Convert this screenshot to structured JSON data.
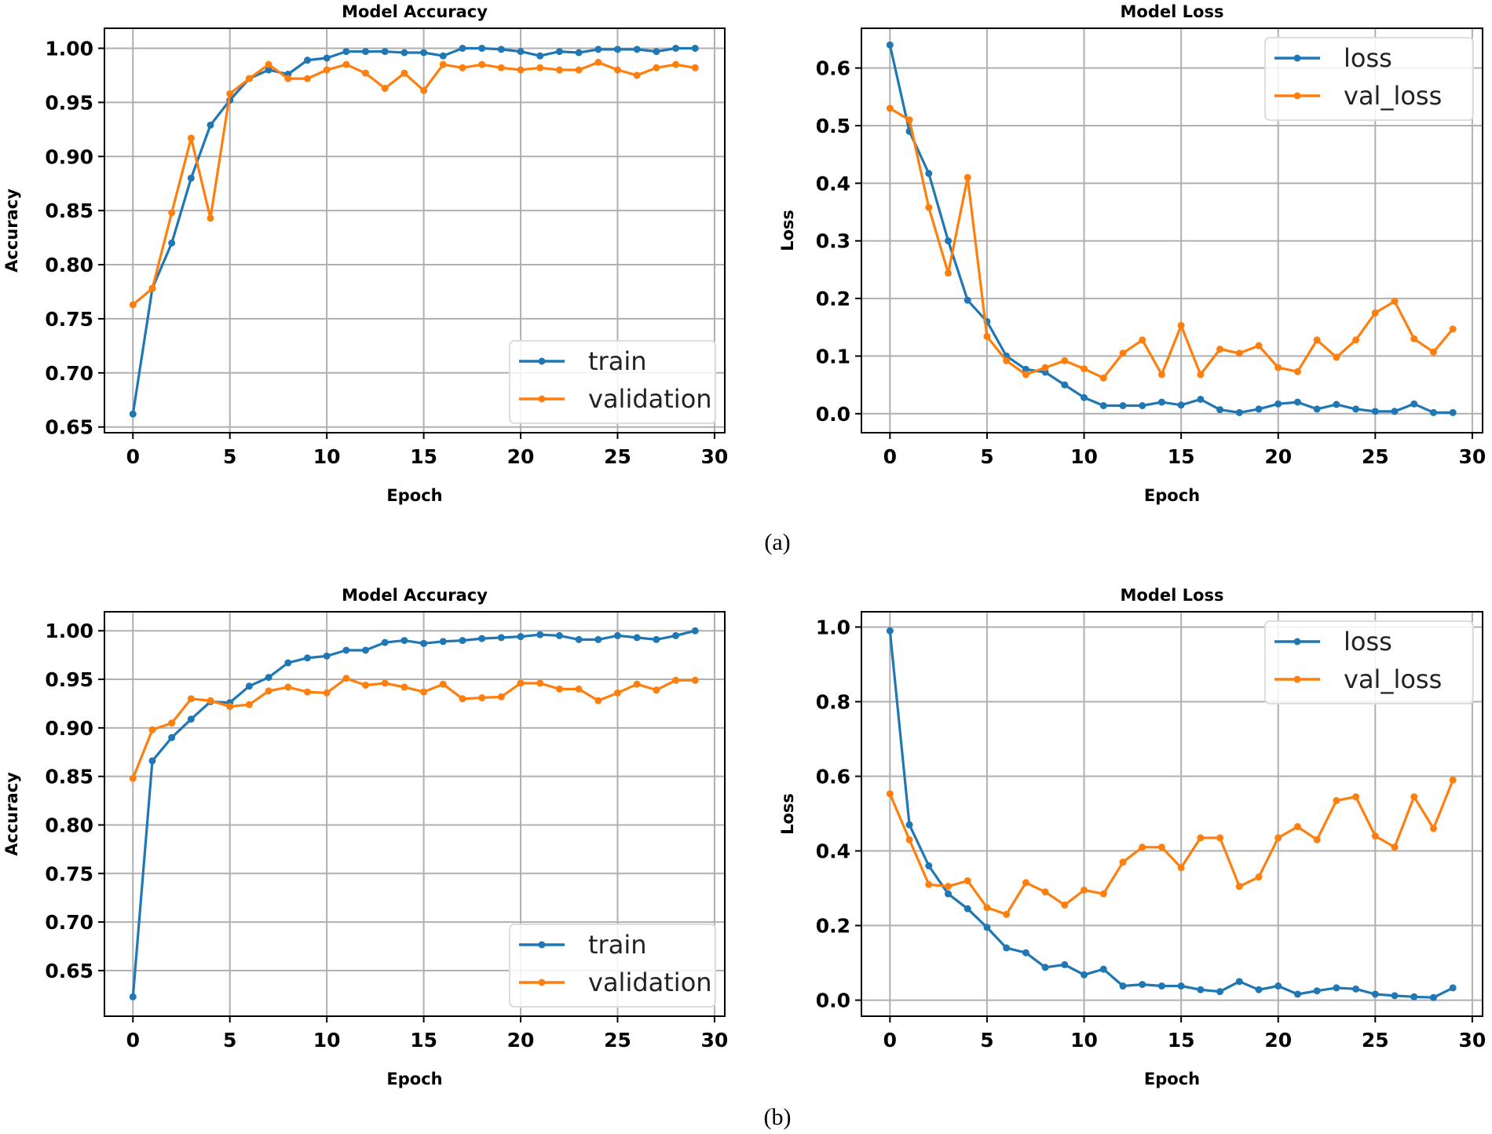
{
  "colors": {
    "train": "#1f77b4",
    "validation": "#ff7f0e",
    "grid": "#b0b0b0"
  },
  "captions": [
    "(a)",
    "(b)"
  ],
  "chart_data": [
    {
      "type": "line",
      "panel": "a",
      "title": "Model Accuracy",
      "xlabel": "Epoch",
      "ylabel": "Accuracy",
      "xlim": [
        -1.47,
        30.53
      ],
      "ylim": [
        0.6447,
        1.0185
      ],
      "xticks": [
        0,
        5,
        10,
        15,
        20,
        25,
        30
      ],
      "yticks": [
        0.65,
        0.7,
        0.75,
        0.8,
        0.85,
        0.9,
        0.95,
        1.0
      ],
      "ytick_labels": [
        "0.65",
        "0.70",
        "0.75",
        "0.80",
        "0.85",
        "0.90",
        "0.95",
        "1.00"
      ],
      "grid": true,
      "legend_position": "lower-right",
      "x": [
        0,
        1,
        2,
        3,
        4,
        5,
        6,
        7,
        8,
        9,
        10,
        11,
        12,
        13,
        14,
        15,
        16,
        17,
        18,
        19,
        20,
        21,
        22,
        23,
        24,
        25,
        26,
        27,
        28,
        29
      ],
      "series": [
        {
          "name": "train",
          "color": "#1f77b4",
          "values": [
            0.662,
            0.778,
            0.82,
            0.88,
            0.929,
            0.952,
            0.972,
            0.98,
            0.976,
            0.989,
            0.991,
            0.997,
            0.997,
            0.997,
            0.996,
            0.996,
            0.993,
            1.0,
            1.0,
            0.999,
            0.997,
            0.993,
            0.997,
            0.996,
            0.999,
            0.999,
            0.999,
            0.997,
            1.0,
            1.0
          ]
        },
        {
          "name": "validation",
          "color": "#ff7f0e",
          "values": [
            0.763,
            0.778,
            0.848,
            0.917,
            0.843,
            0.958,
            0.972,
            0.985,
            0.972,
            0.972,
            0.98,
            0.985,
            0.977,
            0.963,
            0.977,
            0.961,
            0.985,
            0.982,
            0.985,
            0.982,
            0.98,
            0.982,
            0.98,
            0.98,
            0.987,
            0.98,
            0.975,
            0.982,
            0.985,
            0.982
          ]
        }
      ]
    },
    {
      "type": "line",
      "panel": "a",
      "title": "Model Loss",
      "xlabel": "Epoch",
      "ylabel": "Loss",
      "xlim": [
        -1.47,
        30.53
      ],
      "ylim": [
        -0.033,
        0.669
      ],
      "xticks": [
        0,
        5,
        10,
        15,
        20,
        25,
        30
      ],
      "yticks": [
        0.0,
        0.1,
        0.2,
        0.3,
        0.4,
        0.5,
        0.6
      ],
      "ytick_labels": [
        "0.0",
        "0.1",
        "0.2",
        "0.3",
        "0.4",
        "0.5",
        "0.6"
      ],
      "grid": true,
      "legend_position": "upper-right",
      "x": [
        0,
        1,
        2,
        3,
        4,
        5,
        6,
        7,
        8,
        9,
        10,
        11,
        12,
        13,
        14,
        15,
        16,
        17,
        18,
        19,
        20,
        21,
        22,
        23,
        24,
        25,
        26,
        27,
        28,
        29
      ],
      "series": [
        {
          "name": "loss",
          "color": "#1f77b4",
          "values": [
            0.64,
            0.49,
            0.417,
            0.3,
            0.197,
            0.16,
            0.1,
            0.077,
            0.072,
            0.05,
            0.028,
            0.014,
            0.014,
            0.014,
            0.02,
            0.015,
            0.025,
            0.007,
            0.002,
            0.008,
            0.017,
            0.02,
            0.008,
            0.016,
            0.008,
            0.004,
            0.004,
            0.017,
            0.002,
            0.002
          ]
        },
        {
          "name": "val_loss",
          "color": "#ff7f0e",
          "values": [
            0.53,
            0.51,
            0.358,
            0.244,
            0.41,
            0.134,
            0.092,
            0.068,
            0.08,
            0.092,
            0.078,
            0.062,
            0.105,
            0.128,
            0.068,
            0.153,
            0.068,
            0.112,
            0.105,
            0.118,
            0.08,
            0.073,
            0.128,
            0.098,
            0.128,
            0.175,
            0.195,
            0.13,
            0.107,
            0.147
          ]
        }
      ]
    },
    {
      "type": "line",
      "panel": "b",
      "title": "Model Accuracy",
      "xlabel": "Epoch",
      "ylabel": "Accuracy",
      "xlim": [
        -1.47,
        30.53
      ],
      "ylim": [
        0.603,
        1.0196
      ],
      "xticks": [
        0,
        5,
        10,
        15,
        20,
        25,
        30
      ],
      "yticks": [
        0.65,
        0.7,
        0.75,
        0.8,
        0.85,
        0.9,
        0.95,
        1.0
      ],
      "ytick_labels": [
        "0.65",
        "0.70",
        "0.75",
        "0.80",
        "0.85",
        "0.90",
        "0.95",
        "1.00"
      ],
      "grid": true,
      "legend_position": "lower-right",
      "x": [
        0,
        1,
        2,
        3,
        4,
        5,
        6,
        7,
        8,
        9,
        10,
        11,
        12,
        13,
        14,
        15,
        16,
        17,
        18,
        19,
        20,
        21,
        22,
        23,
        24,
        25,
        26,
        27,
        28,
        29
      ],
      "series": [
        {
          "name": "train",
          "color": "#1f77b4",
          "values": [
            0.623,
            0.866,
            0.89,
            0.909,
            0.927,
            0.926,
            0.943,
            0.952,
            0.967,
            0.972,
            0.974,
            0.98,
            0.98,
            0.988,
            0.99,
            0.987,
            0.989,
            0.99,
            0.992,
            0.993,
            0.994,
            0.996,
            0.995,
            0.991,
            0.991,
            0.995,
            0.993,
            0.991,
            0.995,
            1.0
          ]
        },
        {
          "name": "validation",
          "color": "#ff7f0e",
          "values": [
            0.848,
            0.898,
            0.905,
            0.93,
            0.928,
            0.922,
            0.924,
            0.938,
            0.942,
            0.937,
            0.936,
            0.951,
            0.944,
            0.946,
            0.942,
            0.937,
            0.945,
            0.93,
            0.931,
            0.932,
            0.946,
            0.946,
            0.94,
            0.94,
            0.928,
            0.936,
            0.945,
            0.939,
            0.949,
            0.949
          ]
        }
      ]
    },
    {
      "type": "line",
      "panel": "b",
      "title": "Model Loss",
      "xlabel": "Epoch",
      "ylabel": "Loss",
      "xlim": [
        -1.47,
        30.53
      ],
      "ylim": [
        -0.043,
        1.041
      ],
      "xticks": [
        0,
        5,
        10,
        15,
        20,
        25,
        30
      ],
      "yticks": [
        0.0,
        0.2,
        0.4,
        0.6,
        0.8,
        1.0
      ],
      "ytick_labels": [
        "0.0",
        "0.2",
        "0.4",
        "0.6",
        "0.8",
        "1.0"
      ],
      "grid": true,
      "legend_position": "upper-right",
      "x": [
        0,
        1,
        2,
        3,
        4,
        5,
        6,
        7,
        8,
        9,
        10,
        11,
        12,
        13,
        14,
        15,
        16,
        17,
        18,
        19,
        20,
        21,
        22,
        23,
        24,
        25,
        26,
        27,
        28,
        29
      ],
      "series": [
        {
          "name": "loss",
          "color": "#1f77b4",
          "values": [
            0.99,
            0.47,
            0.36,
            0.285,
            0.245,
            0.195,
            0.14,
            0.127,
            0.088,
            0.095,
            0.068,
            0.083,
            0.038,
            0.042,
            0.038,
            0.038,
            0.028,
            0.023,
            0.05,
            0.028,
            0.038,
            0.016,
            0.025,
            0.033,
            0.03,
            0.016,
            0.012,
            0.009,
            0.007,
            0.033
          ]
        },
        {
          "name": "val_loss",
          "color": "#ff7f0e",
          "values": [
            0.553,
            0.43,
            0.31,
            0.305,
            0.32,
            0.248,
            0.23,
            0.315,
            0.29,
            0.255,
            0.295,
            0.285,
            0.37,
            0.41,
            0.41,
            0.355,
            0.435,
            0.435,
            0.305,
            0.33,
            0.435,
            0.465,
            0.43,
            0.535,
            0.545,
            0.44,
            0.41,
            0.545,
            0.46,
            0.59
          ]
        }
      ]
    }
  ]
}
